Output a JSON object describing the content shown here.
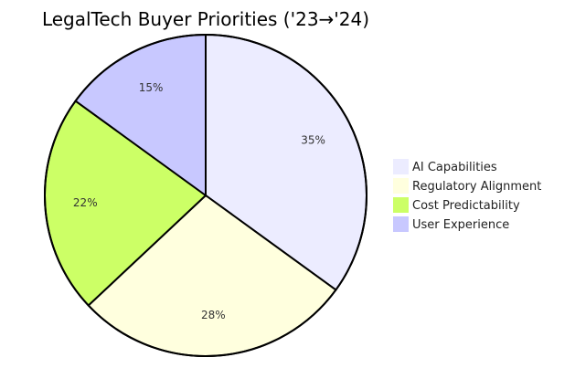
{
  "chart_data": {
    "type": "pie",
    "title": "LegalTech Buyer Priorities ('23→'24)",
    "slices": [
      {
        "label": "AI Capabilities",
        "value": 35,
        "display": "35%",
        "color": "#ececff"
      },
      {
        "label": "Regulatory Alignment",
        "value": 28,
        "display": "28%",
        "color": "#ffffde"
      },
      {
        "label": "Cost Predictability",
        "value": 22,
        "display": "22%",
        "color": "#ccff66"
      },
      {
        "label": "User Experience",
        "value": 15,
        "display": "15%",
        "color": "#c8c8ff"
      }
    ],
    "legend_position": "right",
    "start_angle": "12 o'clock",
    "direction": "clockwise"
  }
}
